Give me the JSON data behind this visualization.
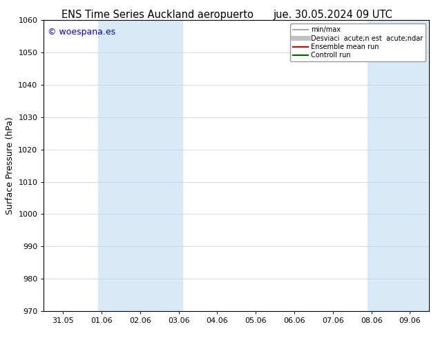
{
  "title_left": "ENS Time Series Auckland aeropuerto",
  "title_right": "jue. 30.05.2024 09 UTC",
  "ylabel": "Surface Pressure (hPa)",
  "ylim": [
    970,
    1060
  ],
  "yticks": [
    970,
    980,
    990,
    1000,
    1010,
    1020,
    1030,
    1040,
    1050,
    1060
  ],
  "xtick_labels": [
    "31.05",
    "01.06",
    "02.06",
    "03.06",
    "04.06",
    "05.06",
    "06.06",
    "07.06",
    "08.06",
    "09.06"
  ],
  "background_color": "#ffffff",
  "plot_bg_color": "#ffffff",
  "watermark": "© woespana.es",
  "watermark_color": "#0000cc",
  "shaded_bands": [
    {
      "xstart": 0.9,
      "xend": 3.1,
      "color": "#d8eaf8"
    },
    {
      "xstart": 7.9,
      "xend": 9.5,
      "color": "#d8eaf8"
    }
  ],
  "legend_entries": [
    {
      "label": "min/max",
      "color": "#aaaaaa",
      "lw": 1.5
    },
    {
      "label": "Desviaci  acute;n est  acute;ndar",
      "color": "#c0c0c0",
      "lw": 5
    },
    {
      "label": "Ensemble mean run",
      "color": "#dd0000",
      "lw": 1.5
    },
    {
      "label": "Controll run",
      "color": "#006600",
      "lw": 1.5
    }
  ],
  "grid_color": "#cccccc",
  "border_color": "#000000",
  "title_fontsize": 10.5,
  "axis_label_fontsize": 9,
  "tick_fontsize": 8,
  "watermark_fontsize": 9
}
